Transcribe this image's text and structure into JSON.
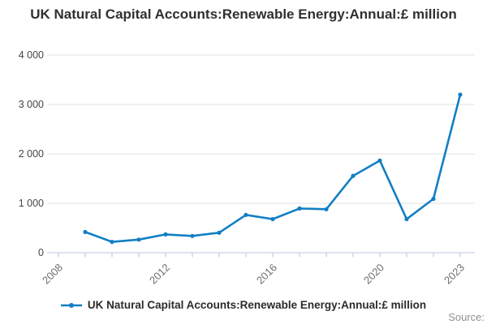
{
  "title": "UK Natural Capital Accounts:Renewable Energy:Annual:£ million",
  "legend": {
    "label": "UK Natural Capital Accounts:Renewable Energy:Annual:£ million",
    "marker": "line-with-dot"
  },
  "source_label": "Source:",
  "colors": {
    "line": "#137fc4",
    "grid": "#e2e2e2",
    "axis": "#c7d0e6",
    "y_label": "#454545",
    "x_label": "#6f6f6f",
    "title": "#303030",
    "legend_text": "#2b2b2b",
    "source": "#8f8f8f",
    "background": "#ffffff"
  },
  "chart_data": {
    "type": "line",
    "title": "UK Natural Capital Accounts:Renewable Energy:Annual:£ million",
    "xlabel": "",
    "ylabel": "",
    "x": [
      2009,
      2010,
      2011,
      2012,
      2013,
      2014,
      2015,
      2016,
      2017,
      2018,
      2019,
      2020,
      2021,
      2022,
      2023
    ],
    "series": [
      {
        "name": "UK Natural Capital Accounts:Renewable Energy:Annual:£ million",
        "values": [
          420,
          220,
          265,
          370,
          340,
          405,
          765,
          680,
          895,
          880,
          1555,
          1865,
          680,
          1090,
          3200
        ]
      }
    ],
    "ylim": [
      0,
      4000
    ],
    "y_ticks": [
      0,
      1000,
      2000,
      3000,
      4000
    ],
    "y_tick_labels": [
      "0",
      "1 000",
      "2 000",
      "3 000",
      "4 000"
    ],
    "x_axis_years": [
      2008,
      2009,
      2010,
      2011,
      2012,
      2013,
      2014,
      2015,
      2016,
      2017,
      2018,
      2019,
      2020,
      2021,
      2022,
      2023
    ],
    "x_labeled_years": [
      2008,
      2012,
      2016,
      2020,
      2023
    ],
    "grid": "horizontal",
    "legend_position": "bottom",
    "marker": "dot"
  }
}
